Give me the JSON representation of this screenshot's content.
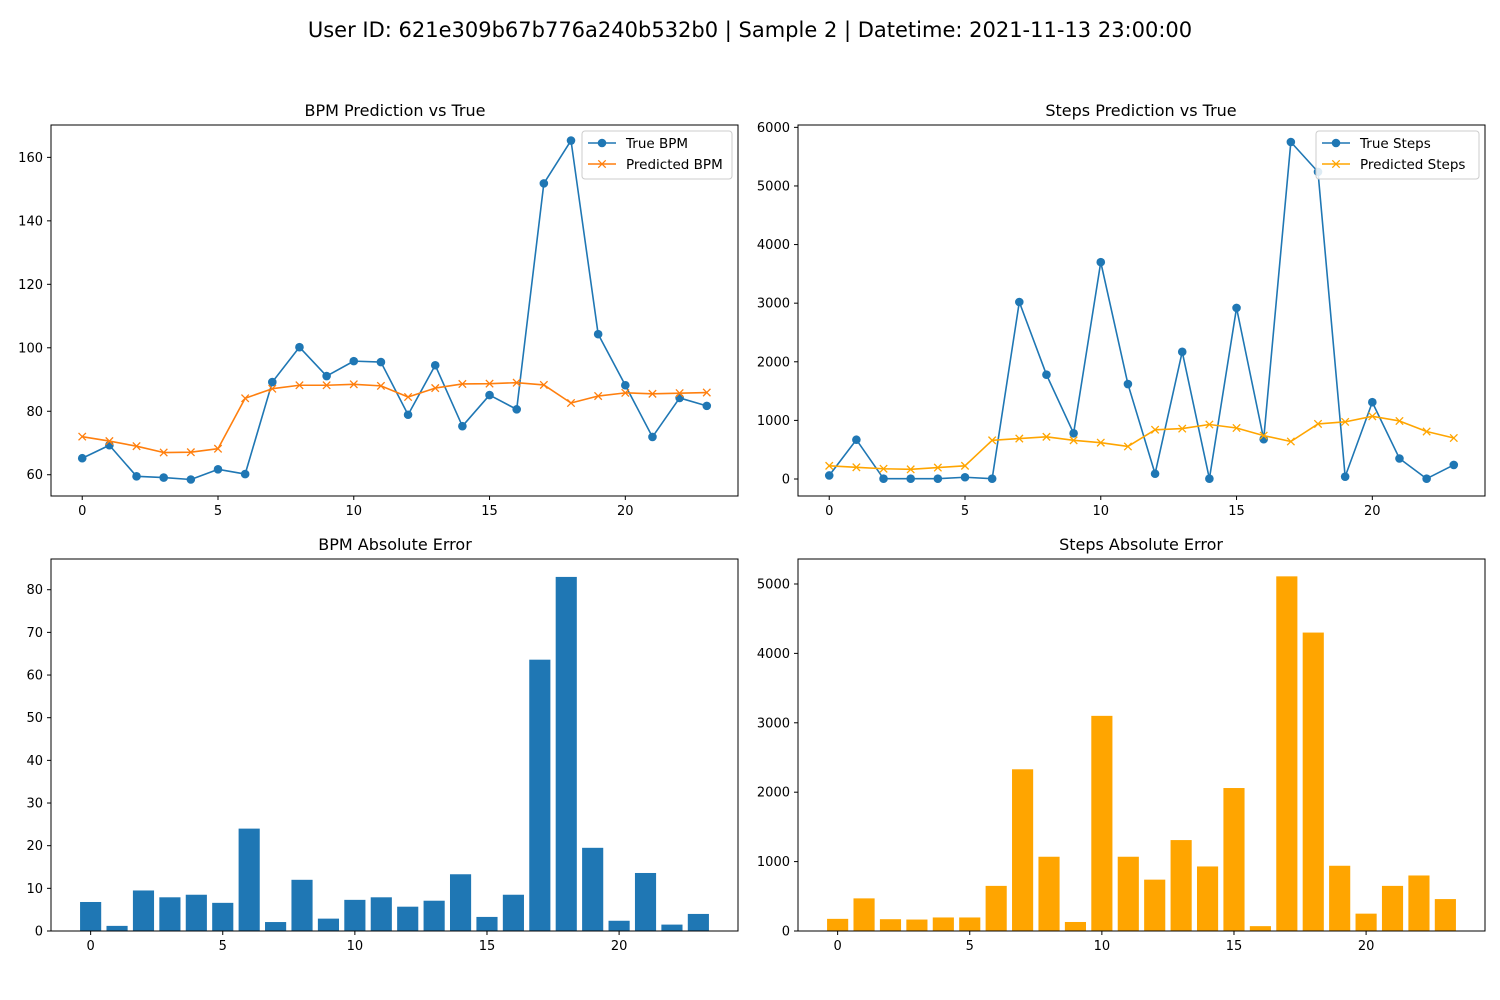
{
  "figure": {
    "suptitle": "User ID: 621e309b67b776a240b532b0 | Sample 2 | Datetime: 2021-11-13 23:00:00"
  },
  "colors": {
    "blue": "#1f77b4",
    "orange": "#ff7f0e",
    "gold": "#ffa500"
  },
  "chart_data": [
    {
      "type": "line",
      "title": "BPM Prediction vs True",
      "xlabel": "",
      "ylabel": "",
      "x": [
        0,
        1,
        2,
        3,
        4,
        5,
        6,
        7,
        8,
        9,
        10,
        11,
        12,
        13,
        14,
        15,
        16,
        17,
        18,
        19,
        20,
        21,
        22,
        23
      ],
      "xlim": [
        -1.15,
        24.15
      ],
      "ylim": [
        53.3,
        170.2
      ],
      "xticks": [
        0,
        5,
        10,
        15,
        20
      ],
      "yticks": [
        60,
        80,
        100,
        120,
        140,
        160
      ],
      "grid": false,
      "legend": "upper right",
      "series": [
        {
          "name": "True BPM",
          "color": "#1f77b4",
          "marker": "circle",
          "values": [
            65.2,
            69.3,
            59.5,
            59.1,
            58.5,
            61.7,
            60.2,
            89.2,
            100.2,
            91.1,
            95.8,
            95.5,
            78.9,
            94.5,
            75.3,
            85.1,
            80.6,
            151.8,
            165.3,
            104.3,
            88.2,
            71.9,
            84.2,
            81.7
          ]
        },
        {
          "name": "Predicted BPM",
          "color": "#ff7f0e",
          "marker": "x",
          "values": [
            72.0,
            70.6,
            69.0,
            67.0,
            67.1,
            68.2,
            84.1,
            87.1,
            88.2,
            88.2,
            88.5,
            88.0,
            84.5,
            87.3,
            88.6,
            88.7,
            89.0,
            88.3,
            82.6,
            84.8,
            85.8,
            85.5,
            85.7,
            85.9
          ]
        }
      ]
    },
    {
      "type": "line",
      "title": "Steps Prediction vs True",
      "xlabel": "",
      "ylabel": "",
      "x": [
        0,
        1,
        2,
        3,
        4,
        5,
        6,
        7,
        8,
        9,
        10,
        11,
        12,
        13,
        14,
        15,
        16,
        17,
        18,
        19,
        20,
        21,
        22,
        23
      ],
      "xlim": [
        -1.15,
        24.15
      ],
      "ylim": [
        -290,
        6040
      ],
      "xticks": [
        0,
        5,
        10,
        15,
        20
      ],
      "yticks": [
        0,
        1000,
        2000,
        3000,
        4000,
        5000,
        6000
      ],
      "grid": false,
      "legend": "upper right",
      "series": [
        {
          "name": "True Steps",
          "color": "#1f77b4",
          "marker": "circle",
          "values": [
            60,
            670,
            5,
            5,
            5,
            30,
            5,
            3020,
            1780,
            780,
            3700,
            1620,
            90,
            2170,
            5,
            2920,
            680,
            5750,
            5240,
            40,
            1310,
            350,
            5,
            240
          ]
        },
        {
          "name": "Predicted Steps",
          "color": "#ffa500",
          "marker": "x",
          "values": [
            225,
            200,
            175,
            165,
            195,
            225,
            660,
            690,
            720,
            660,
            620,
            555,
            840,
            860,
            930,
            870,
            740,
            640,
            940,
            975,
            1070,
            990,
            810,
            700
          ]
        }
      ]
    },
    {
      "type": "bar",
      "title": "BPM Absolute Error",
      "xlabel": "",
      "ylabel": "",
      "categories": [
        0,
        1,
        2,
        3,
        4,
        5,
        6,
        7,
        8,
        9,
        10,
        11,
        12,
        13,
        14,
        15,
        16,
        17,
        18,
        19,
        20,
        21,
        22,
        23
      ],
      "xlim": [
        -1.5,
        24.5
      ],
      "ylim": [
        0,
        87.2
      ],
      "xticks": [
        0,
        5,
        10,
        15,
        20
      ],
      "yticks": [
        0,
        10,
        20,
        30,
        40,
        50,
        60,
        70,
        80
      ],
      "grid": false,
      "color": "#1f77b4",
      "values": [
        6.8,
        1.2,
        9.5,
        7.9,
        8.5,
        6.6,
        24.0,
        2.1,
        12.0,
        2.9,
        7.3,
        7.9,
        5.7,
        7.1,
        13.3,
        3.3,
        8.5,
        63.6,
        83.0,
        19.5,
        2.4,
        13.6,
        1.5,
        4.0
      ]
    },
    {
      "type": "bar",
      "title": "Steps Absolute Error",
      "xlabel": "",
      "ylabel": "",
      "categories": [
        0,
        1,
        2,
        3,
        4,
        5,
        6,
        7,
        8,
        9,
        10,
        11,
        12,
        13,
        14,
        15,
        16,
        17,
        18,
        19,
        20,
        21,
        22,
        23
      ],
      "xlim": [
        -1.5,
        24.5
      ],
      "ylim": [
        0,
        5360
      ],
      "xticks": [
        0,
        5,
        10,
        15,
        20
      ],
      "yticks": [
        0,
        1000,
        2000,
        3000,
        4000,
        5000
      ],
      "grid": false,
      "color": "#ffa500",
      "values": [
        175,
        470,
        170,
        165,
        195,
        195,
        650,
        2330,
        1070,
        130,
        3100,
        1070,
        740,
        1310,
        930,
        2060,
        70,
        5110,
        4300,
        940,
        250,
        650,
        800,
        460
      ]
    }
  ]
}
